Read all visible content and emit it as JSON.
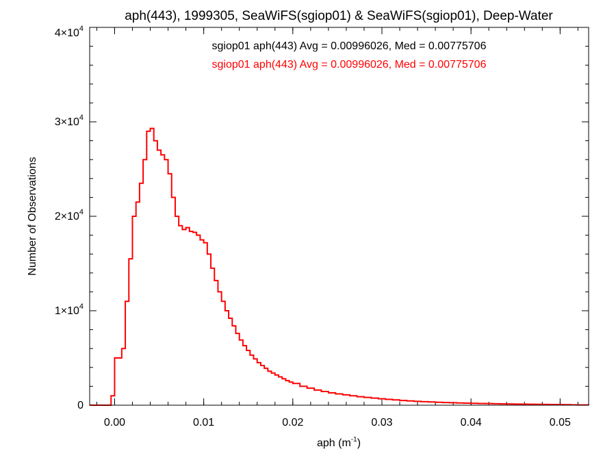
{
  "chart_data": {
    "type": "line",
    "chart_style": "step-histogram",
    "title": "aph(443), 1999305, SeaWiFS(sgiop01) & SeaWiFS(sgiop01), Deep-Water",
    "xlabel": {
      "base": "aph (m",
      "sup": "-1",
      "tail": ")"
    },
    "ylabel": "Number of Observations",
    "xlim": [
      -0.0028,
      0.0532
    ],
    "ylim": [
      0,
      40000
    ],
    "grid": false,
    "x_ticks": [
      {
        "value": 0.0,
        "label": "0.00"
      },
      {
        "value": 0.01,
        "label": "0.01"
      },
      {
        "value": 0.02,
        "label": "0.02"
      },
      {
        "value": 0.03,
        "label": "0.03"
      },
      {
        "value": 0.04,
        "label": "0.04"
      },
      {
        "value": 0.05,
        "label": "0.05"
      }
    ],
    "x_minor_step": 0.002,
    "y_ticks": [
      {
        "value": 0,
        "mantissa": "0",
        "exp": ""
      },
      {
        "value": 10000,
        "mantissa": "1×10",
        "exp": "4"
      },
      {
        "value": 20000,
        "mantissa": "2×10",
        "exp": "4"
      },
      {
        "value": 30000,
        "mantissa": "3×10",
        "exp": "4"
      },
      {
        "value": 40000,
        "mantissa": "4×10",
        "exp": "4"
      }
    ],
    "y_minor_step": 2000,
    "annotations": [
      {
        "text": "sgiop01 aph(443) Avg = 0.00996026, Med = 0.00775706",
        "color": "#000000"
      },
      {
        "text": "sgiop01 aph(443) Avg = 0.00996026, Med = 0.00775706",
        "color": "#ff0000"
      }
    ],
    "series": [
      {
        "color": "#ff0000",
        "x": [
          -0.0028,
          -0.0024,
          -0.002,
          -0.0016,
          -0.0012,
          -0.0008,
          -0.0004,
          0.0,
          0.0004,
          0.0008,
          0.0012,
          0.0016,
          0.002,
          0.0024,
          0.0028,
          0.0032,
          0.0036,
          0.004,
          0.0044,
          0.0048,
          0.0052,
          0.0056,
          0.006,
          0.0064,
          0.0068,
          0.0072,
          0.0076,
          0.008,
          0.0084,
          0.0088,
          0.0092,
          0.0096,
          0.01,
          0.0104,
          0.0108,
          0.0112,
          0.0116,
          0.012,
          0.0124,
          0.0128,
          0.0132,
          0.0136,
          0.014,
          0.0144,
          0.0148,
          0.0152,
          0.0156,
          0.016,
          0.0164,
          0.0168,
          0.0172,
          0.0176,
          0.018,
          0.0184,
          0.0188,
          0.0192,
          0.0196,
          0.02,
          0.0208,
          0.0216,
          0.0224,
          0.0232,
          0.024,
          0.0248,
          0.0256,
          0.0264,
          0.0272,
          0.028,
          0.0288,
          0.0296,
          0.0304,
          0.0312,
          0.032,
          0.0328,
          0.0336,
          0.0344,
          0.0352,
          0.036,
          0.0368,
          0.0376,
          0.0384,
          0.0392,
          0.04,
          0.0408,
          0.0416,
          0.0424,
          0.0432,
          0.044,
          0.0448,
          0.0456,
          0.0464,
          0.0472,
          0.048,
          0.0488,
          0.0496,
          0.0504,
          0.0512,
          0.052,
          0.0528,
          0.0532
        ],
        "values": [
          0,
          0,
          0,
          0,
          0,
          0,
          1000,
          5000,
          5000,
          6000,
          11000,
          15500,
          20000,
          21500,
          23500,
          26000,
          29000,
          29300,
          28000,
          27000,
          26500,
          26000,
          24500,
          22000,
          20000,
          19000,
          18600,
          18800,
          18400,
          18300,
          18000,
          17500,
          17200,
          16000,
          14500,
          13200,
          12000,
          11000,
          10000,
          9200,
          8400,
          7600,
          6900,
          6300,
          5800,
          5300,
          4900,
          4500,
          4200,
          3900,
          3600,
          3400,
          3200,
          3000,
          2800,
          2600,
          2450,
          2300,
          2000,
          1800,
          1600,
          1450,
          1300,
          1200,
          1100,
          1000,
          900,
          820,
          750,
          680,
          620,
          560,
          500,
          450,
          410,
          370,
          340,
          310,
          280,
          260,
          240,
          220,
          200,
          185,
          170,
          155,
          140,
          130,
          120,
          110,
          100,
          90,
          80,
          70,
          60,
          50,
          40,
          30,
          25,
          0
        ]
      }
    ]
  }
}
